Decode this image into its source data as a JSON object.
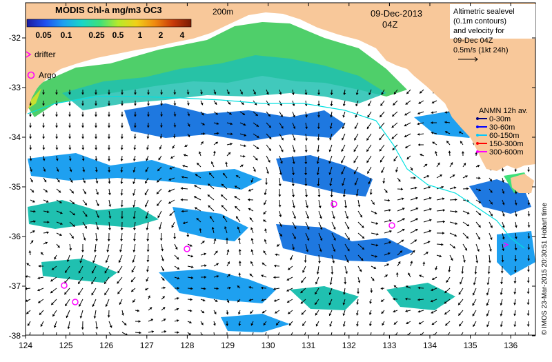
{
  "colorbar": {
    "title": "MODIS Chl-a mg/m3 OC3",
    "ticks": [
      "0.05",
      "0.1",
      "0.25",
      "0.5",
      "1",
      "2",
      "4"
    ],
    "stops": [
      "#1b1ba0",
      "#1e4ff0",
      "#1ea0f0",
      "#18d6c8",
      "#3ee07a",
      "#b7ea2a",
      "#f1d018",
      "#f08a10",
      "#c93a08",
      "#7a1b02"
    ]
  },
  "legend_left": {
    "drifter": "drifter",
    "argo": "Argo"
  },
  "contour_label": "200m",
  "date": {
    "date": "09-Dec-2013",
    "time": "04Z"
  },
  "altimetry_note": {
    "line1": "Altimetric sealevel",
    "line2": "(0.1m contours)",
    "line3": "and velocity for",
    "line4": "09-Dec 04Z",
    "line5": "0.5m/s (1kt 24h)"
  },
  "anmn_legend": {
    "title": "ANMN 12h av.",
    "items": [
      {
        "label": "0-30m",
        "color": "#000080"
      },
      {
        "label": "30-60m",
        "color": "#0000ff"
      },
      {
        "label": "60-150m",
        "color": "#00c8ff"
      },
      {
        "label": "150-300m",
        "color": "#ff0000"
      },
      {
        "label": "300-600m",
        "color": "#ff00ff"
      }
    ]
  },
  "axes": {
    "x_ticks": [
      "124",
      "125",
      "126",
      "127",
      "128",
      "129",
      "130",
      "131",
      "132",
      "133",
      "134",
      "135",
      "136"
    ],
    "y_ticks": [
      "-32",
      "-33",
      "-34",
      "-35",
      "-36",
      "-37",
      "-38"
    ]
  },
  "copyright": "© IMOS 23-Mar-2015 20:30:51 Hobart time",
  "colors": {
    "land": "#f8c89a",
    "drifter_marker": "#ff00ff",
    "argo_marker": "#ff00ff",
    "shelf_line": "#00e0e0"
  }
}
